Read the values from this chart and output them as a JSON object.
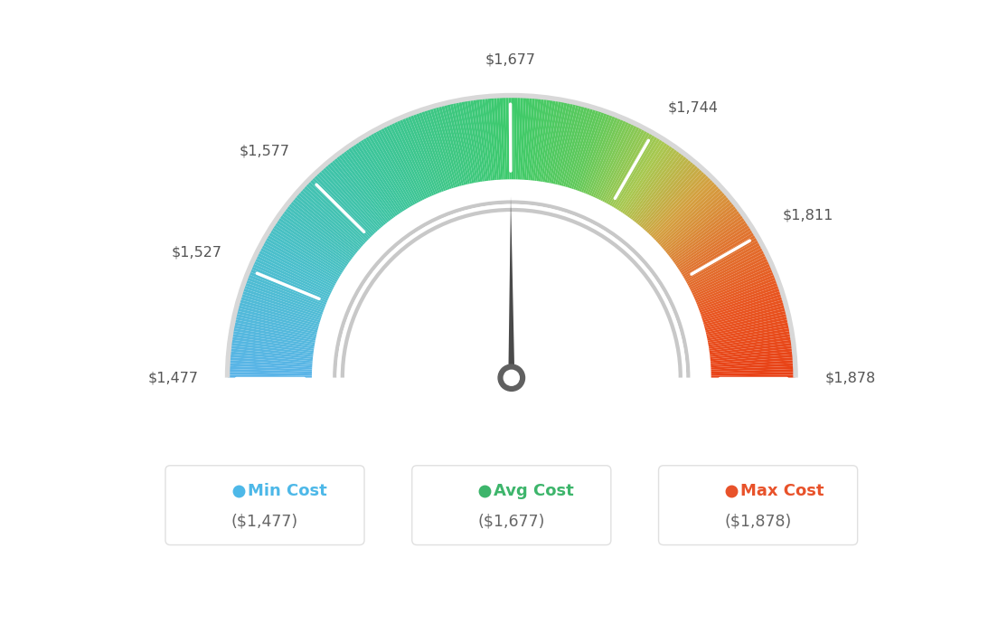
{
  "min_val": 1477,
  "avg_val": 1677,
  "max_val": 1878,
  "tick_labels": [
    "$1,477",
    "$1,527",
    "$1,577",
    "$1,677",
    "$1,744",
    "$1,811",
    "$1,878"
  ],
  "tick_values": [
    1477,
    1527,
    1577,
    1677,
    1744,
    1811,
    1878
  ],
  "legend_labels": [
    "Min Cost",
    "Avg Cost",
    "Max Cost"
  ],
  "legend_values": [
    "($1,477)",
    "($1,677)",
    "($1,878)"
  ],
  "legend_colors": [
    "#4db8e8",
    "#3db56b",
    "#e8522a"
  ],
  "bg_color": "#ffffff",
  "gauge_colors": [
    [
      0.0,
      "#5ab4e8"
    ],
    [
      0.15,
      "#4bbfcc"
    ],
    [
      0.3,
      "#3dc4a0"
    ],
    [
      0.45,
      "#3ec87a"
    ],
    [
      0.5,
      "#3dca6a"
    ],
    [
      0.6,
      "#60c95a"
    ],
    [
      0.68,
      "#a8c850"
    ],
    [
      0.75,
      "#d4a040"
    ],
    [
      0.82,
      "#e07530"
    ],
    [
      0.9,
      "#e85520"
    ],
    [
      1.0,
      "#e84015"
    ]
  ]
}
